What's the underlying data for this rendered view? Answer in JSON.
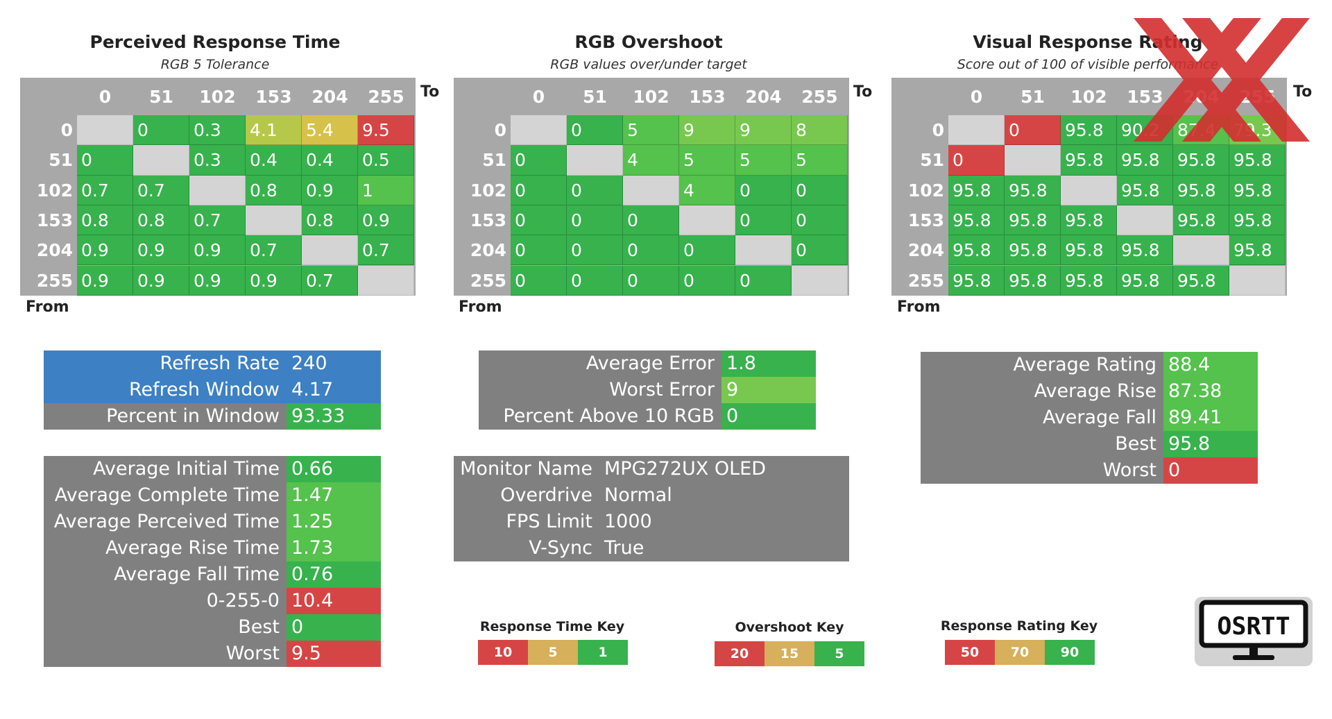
{
  "colors": {
    "green": "#37b24d",
    "green_mid": "#54c24c",
    "light_green": "#78c850",
    "yellow_green": "#b5c84a",
    "yellow": "#d6c24a",
    "orange": "#d98a40",
    "red": "#d64545",
    "blue": "#3d80c4",
    "panel_gray": "#808080",
    "matrix_header_gray": "#a8a8a8",
    "diagonal_gray": "#d4d4d4",
    "key_red": "#d64545",
    "key_yellow": "#d6b05a",
    "key_green": "#37b24d"
  },
  "chart_data": [
    {
      "type": "heatmap",
      "title": "Perceived Response Time",
      "subtitle": "RGB 5 Tolerance",
      "col_axis_label": "To",
      "row_axis_label": "From",
      "columns": [
        "0",
        "51",
        "102",
        "153",
        "204",
        "255"
      ],
      "rows": [
        "0",
        "51",
        "102",
        "153",
        "204",
        "255"
      ],
      "values": [
        [
          null,
          "0",
          "0.3",
          "4.1",
          "5.4",
          "9.5"
        ],
        [
          "0",
          null,
          "0.3",
          "0.4",
          "0.4",
          "0.5"
        ],
        [
          "0.7",
          "0.7",
          null,
          "0.8",
          "0.9",
          "1"
        ],
        [
          "0.8",
          "0.8",
          "0.7",
          null,
          "0.8",
          "0.9"
        ],
        [
          "0.9",
          "0.9",
          "0.9",
          "0.7",
          null,
          "0.7"
        ],
        [
          "0.9",
          "0.9",
          "0.9",
          "0.9",
          "0.7",
          null
        ]
      ],
      "cell_colors": [
        [
          null,
          "green",
          "green",
          "yellow_green",
          "yellow",
          "red"
        ],
        [
          "green",
          null,
          "green",
          "green",
          "green",
          "green"
        ],
        [
          "green",
          "green",
          null,
          "green",
          "green",
          "green_mid"
        ],
        [
          "green",
          "green",
          "green",
          null,
          "green",
          "green"
        ],
        [
          "green",
          "green",
          "green",
          "green",
          null,
          "green"
        ],
        [
          "green",
          "green",
          "green",
          "green",
          "green",
          null
        ]
      ]
    },
    {
      "type": "heatmap",
      "title": "RGB Overshoot",
      "subtitle": "RGB values over/under target",
      "col_axis_label": "To",
      "row_axis_label": "From",
      "columns": [
        "0",
        "51",
        "102",
        "153",
        "204",
        "255"
      ],
      "rows": [
        "0",
        "51",
        "102",
        "153",
        "204",
        "255"
      ],
      "values": [
        [
          null,
          "0",
          "5",
          "9",
          "9",
          "8"
        ],
        [
          "0",
          null,
          "4",
          "5",
          "5",
          "5"
        ],
        [
          "0",
          "0",
          null,
          "4",
          "0",
          "0"
        ],
        [
          "0",
          "0",
          "0",
          null,
          "0",
          "0"
        ],
        [
          "0",
          "0",
          "0",
          "0",
          null,
          "0"
        ],
        [
          "0",
          "0",
          "0",
          "0",
          "0",
          null
        ]
      ],
      "cell_colors": [
        [
          null,
          "green",
          "green_mid",
          "light_green",
          "light_green",
          "light_green"
        ],
        [
          "green",
          null,
          "green_mid",
          "green_mid",
          "green_mid",
          "green_mid"
        ],
        [
          "green",
          "green",
          null,
          "green_mid",
          "green",
          "green"
        ],
        [
          "green",
          "green",
          "green",
          null,
          "green",
          "green"
        ],
        [
          "green",
          "green",
          "green",
          "green",
          null,
          "green"
        ],
        [
          "green",
          "green",
          "green",
          "green",
          "green",
          null
        ]
      ]
    },
    {
      "type": "heatmap",
      "title": "Visual Response Rating",
      "subtitle": "Score out of 100 of visible performance",
      "col_axis_label": "To",
      "row_axis_label": "From",
      "columns": [
        "0",
        "51",
        "102",
        "153",
        "204",
        "255"
      ],
      "rows": [
        "0",
        "51",
        "102",
        "153",
        "204",
        "255"
      ],
      "values": [
        [
          null,
          "0",
          "95.8",
          "90.2",
          "87.4",
          "79.3"
        ],
        [
          "0",
          null,
          "95.8",
          "95.8",
          "95.8",
          "95.8"
        ],
        [
          "95.8",
          "95.8",
          null,
          "95.8",
          "95.8",
          "95.8"
        ],
        [
          "95.8",
          "95.8",
          "95.8",
          null,
          "95.8",
          "95.8"
        ],
        [
          "95.8",
          "95.8",
          "95.8",
          "95.8",
          null,
          "95.8"
        ],
        [
          "95.8",
          "95.8",
          "95.8",
          "95.8",
          "95.8",
          null
        ]
      ],
      "cell_colors": [
        [
          null,
          "red",
          "green",
          "green",
          "green_mid",
          "light_green"
        ],
        [
          "red",
          null,
          "green",
          "green",
          "green",
          "green"
        ],
        [
          "green",
          "green",
          null,
          "green",
          "green",
          "green"
        ],
        [
          "green",
          "green",
          "green",
          null,
          "green",
          "green"
        ],
        [
          "green",
          "green",
          "green",
          "green",
          null,
          "green"
        ],
        [
          "green",
          "green",
          "green",
          "green",
          "green",
          null
        ]
      ]
    }
  ],
  "panels": {
    "refresh": [
      {
        "label": "Refresh Rate",
        "value": "240",
        "label_color": "blue",
        "value_color": "blue"
      },
      {
        "label": "Refresh Window",
        "value": "4.17",
        "label_color": "blue",
        "value_color": "blue"
      },
      {
        "label": "Percent in Window",
        "value": "93.33",
        "label_color": "panel_gray",
        "value_color": "green"
      }
    ],
    "times": [
      {
        "label": "Average Initial Time",
        "value": "0.66",
        "value_color": "green"
      },
      {
        "label": "Average Complete Time",
        "value": "1.47",
        "value_color": "green_mid"
      },
      {
        "label": "Average Perceived Time",
        "value": "1.25",
        "value_color": "green_mid"
      },
      {
        "label": "Average Rise Time",
        "value": "1.73",
        "value_color": "green_mid"
      },
      {
        "label": "Average Fall Time",
        "value": "0.76",
        "value_color": "green"
      },
      {
        "label": "0-255-0",
        "value": "10.4",
        "value_color": "red"
      },
      {
        "label": "Best",
        "value": "0",
        "value_color": "green"
      },
      {
        "label": "Worst",
        "value": "9.5",
        "value_color": "red"
      }
    ],
    "errors": [
      {
        "label": "Average Error",
        "value": "1.8",
        "value_color": "green"
      },
      {
        "label": "Worst Error",
        "value": "9",
        "value_color": "light_green"
      },
      {
        "label": "Percent Above 10 RGB",
        "value": "0",
        "value_color": "green"
      }
    ],
    "monitor": [
      {
        "label": "Monitor Name",
        "value": "MPG272UX OLED"
      },
      {
        "label": "Overdrive",
        "value": "Normal"
      },
      {
        "label": "FPS Limit",
        "value": "1000"
      },
      {
        "label": "V-Sync",
        "value": "True"
      }
    ],
    "ratings": [
      {
        "label": "Average Rating",
        "value": "88.4",
        "value_color": "green_mid"
      },
      {
        "label": "Average Rise",
        "value": "87.38",
        "value_color": "green_mid"
      },
      {
        "label": "Average Fall",
        "value": "89.41",
        "value_color": "green_mid"
      },
      {
        "label": "Best",
        "value": "95.8",
        "value_color": "green"
      },
      {
        "label": "Worst",
        "value": "0",
        "value_color": "red"
      }
    ]
  },
  "keys": [
    {
      "title": "Response Time Key",
      "values": [
        "10",
        "5",
        "1"
      ]
    },
    {
      "title": "Overshoot Key",
      "values": [
        "20",
        "15",
        "5"
      ]
    },
    {
      "title": "Response Rating Key",
      "values": [
        "50",
        "70",
        "90"
      ]
    }
  ],
  "logo": {
    "text": "OSRTT",
    "icon": "monitor-icon"
  },
  "watermark": {
    "icon": "red-double-x-logo"
  }
}
